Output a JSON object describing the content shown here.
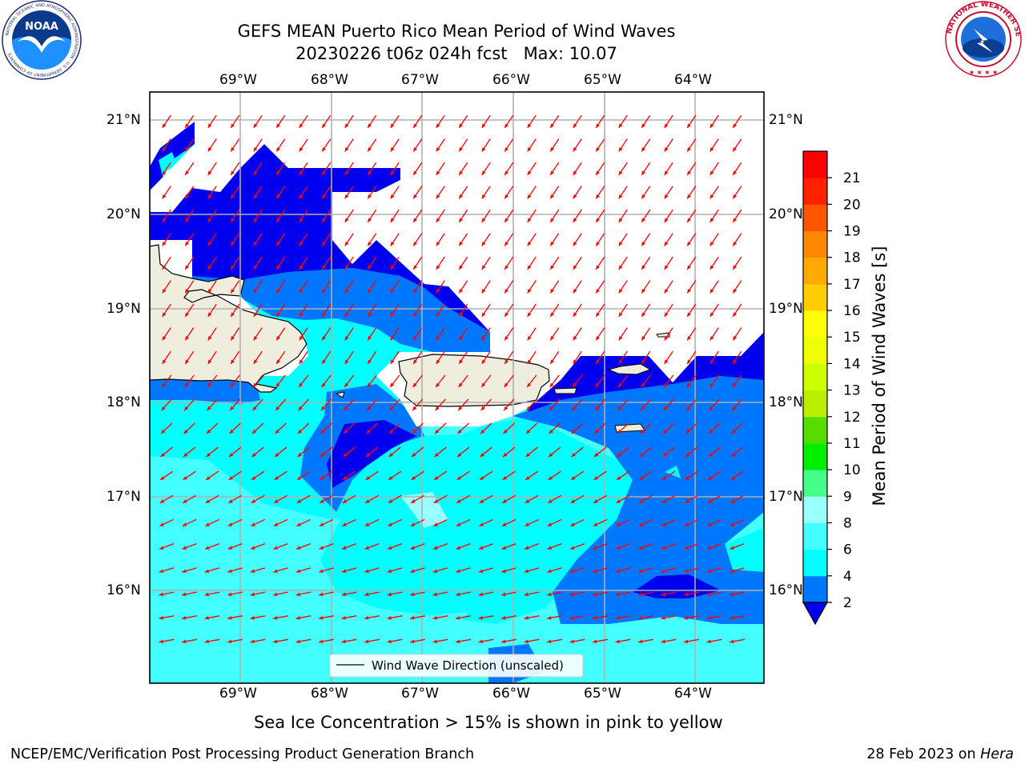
{
  "header": {
    "title_line1": "GEFS MEAN Puerto Rico Mean Period of Wind Waves",
    "title_line2": "20230226 t06z 024h fcst   Max: 10.07"
  },
  "logos": {
    "noaa_text": "NOAA",
    "noaa_ring": "NATIONAL OCEANIC AND ATMOSPHERIC ADMINISTRATION · U.S. DEPARTMENT OF COMMERCE",
    "nws_ring": "NATIONAL WEATHER SERVICE"
  },
  "map": {
    "lon_labels": [
      "69°W",
      "68°W",
      "67°W",
      "66°W",
      "65°W",
      "64°W"
    ],
    "lat_labels": [
      "21°N",
      "20°N",
      "19°N",
      "18°N",
      "17°N",
      "16°N"
    ],
    "lon_range": [
      -69.98,
      -63.27
    ],
    "lat_range": [
      15.0,
      21.3
    ],
    "legend_label": "Wind Wave Direction (unscaled)",
    "arrow_color": "#ff0000",
    "land_color": "#efedde",
    "no_data_color": "#ffffff"
  },
  "colorbar": {
    "label": "Mean Period of Wind Waves [s]",
    "ticks": [
      "2",
      "4",
      "6",
      "8",
      "9",
      "10",
      "11",
      "12",
      "13",
      "14",
      "15",
      "16",
      "17",
      "18",
      "19",
      "20",
      "21"
    ],
    "bands": [
      {
        "from": 2,
        "to": 4,
        "color": "#0077ff"
      },
      {
        "from": 4,
        "to": 6,
        "color": "#00ffff"
      },
      {
        "from": 6,
        "to": 8,
        "color": "#44ffff"
      },
      {
        "from": 8,
        "to": 9,
        "color": "#99ffff"
      },
      {
        "from": 9,
        "to": 10,
        "color": "#44ff88"
      },
      {
        "from": 10,
        "to": 11,
        "color": "#00ee00"
      },
      {
        "from": 11,
        "to": 12,
        "color": "#55dd00"
      },
      {
        "from": 12,
        "to": 13,
        "color": "#bbee00"
      },
      {
        "from": 13,
        "to": 14,
        "color": "#ccff00"
      },
      {
        "from": 14,
        "to": 15,
        "color": "#eeff00"
      },
      {
        "from": 15,
        "to": 16,
        "color": "#ffff00"
      },
      {
        "from": 16,
        "to": 17,
        "color": "#ffcc00"
      },
      {
        "from": 17,
        "to": 18,
        "color": "#ffaa00"
      },
      {
        "from": 18,
        "to": 19,
        "color": "#ff8800"
      },
      {
        "from": 19,
        "to": 20,
        "color": "#ff5500"
      },
      {
        "from": 20,
        "to": 21,
        "color": "#ff2200"
      },
      {
        "from": 21,
        "to": 22,
        "color": "#ff0000"
      }
    ],
    "under_color": "#0000ee"
  },
  "caption": "Sea Ice Concentration > 15% is shown in pink to yellow",
  "footer": {
    "left": "NCEP/EMC/Verification Post Processing Product Generation Branch",
    "right_prefix": "28 Feb 2023 on ",
    "right_machine": "Hera"
  }
}
